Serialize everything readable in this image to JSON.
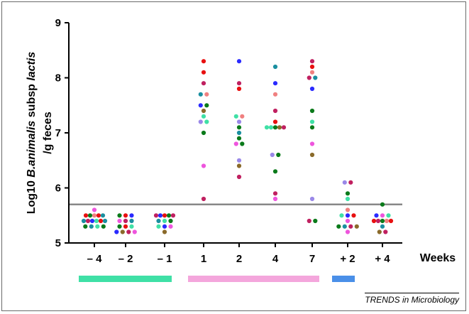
{
  "chart_data": {
    "type": "scatter",
    "ylabel_line1": {
      "prefix": "Log10 ",
      "italic": "B.animalis",
      "middle": " subsp ",
      "italic2": "lactis"
    },
    "ylabel_line2": "/g feces",
    "xlabel": "Weeks",
    "ylim": [
      5,
      9
    ],
    "yticks": [
      "5",
      "6",
      "7",
      "8",
      "9"
    ],
    "threshold": 5.7,
    "categories": [
      "– 4",
      "– 2",
      "– 1",
      "1",
      "2",
      "4",
      "7",
      "+ 2",
      "+ 4"
    ],
    "group_bars": [
      {
        "from": 0,
        "to": 2,
        "color": "#3fe0a6"
      },
      {
        "from": 3,
        "to": 6,
        "color": "#f4a6dc"
      },
      {
        "from": 7,
        "to": 7,
        "color": "#4a8fe8"
      }
    ],
    "series": [
      {
        "category": 0,
        "points": [
          {
            "y": 5.6,
            "color": "#ee55dd"
          },
          {
            "y": 5.5,
            "color": "#e81010"
          },
          {
            "y": 5.5,
            "color": "#0a7a1a"
          },
          {
            "y": 5.5,
            "color": "#f08080"
          },
          {
            "y": 5.5,
            "color": "#e81010"
          },
          {
            "y": 5.5,
            "color": "#1a8fa0"
          },
          {
            "y": 5.4,
            "color": "#1a8fa0"
          },
          {
            "y": 5.4,
            "color": "#c02060"
          },
          {
            "y": 5.4,
            "color": "#2a2aff"
          },
          {
            "y": 5.4,
            "color": "#3fe0a6"
          },
          {
            "y": 5.4,
            "color": "#e81010"
          },
          {
            "y": 5.4,
            "color": "#1a8fa0"
          },
          {
            "y": 5.3,
            "color": "#0a7a1a"
          },
          {
            "y": 5.3,
            "color": "#1a8fa0"
          },
          {
            "y": 5.3,
            "color": "#3fe0a6"
          },
          {
            "y": 5.3,
            "color": "#0a7a1a"
          }
        ]
      },
      {
        "category": 1,
        "points": [
          {
            "y": 5.5,
            "color": "#0a7a1a"
          },
          {
            "y": 5.5,
            "color": "#e81010"
          },
          {
            "y": 5.5,
            "color": "#2a2aff"
          },
          {
            "y": 5.4,
            "color": "#ee55dd"
          },
          {
            "y": 5.4,
            "color": "#c02060"
          },
          {
            "y": 5.4,
            "color": "#1a8fa0"
          },
          {
            "y": 5.3,
            "color": "#0a7a1a"
          },
          {
            "y": 5.3,
            "color": "#e81010"
          },
          {
            "y": 5.3,
            "color": "#3fe0a6"
          },
          {
            "y": 5.2,
            "color": "#2a2aff"
          },
          {
            "y": 5.2,
            "color": "#8a6a2a"
          },
          {
            "y": 5.2,
            "color": "#c02060"
          },
          {
            "y": 5.2,
            "color": "#ee55dd"
          }
        ]
      },
      {
        "category": 2,
        "points": [
          {
            "y": 5.5,
            "color": "#c02060"
          },
          {
            "y": 5.5,
            "color": "#2a2aff"
          },
          {
            "y": 5.5,
            "color": "#e81010"
          },
          {
            "y": 5.5,
            "color": "#0a7a1a"
          },
          {
            "y": 5.5,
            "color": "#c02060"
          },
          {
            "y": 5.4,
            "color": "#1a8fa0"
          },
          {
            "y": 5.4,
            "color": "#3fe0a6"
          },
          {
            "y": 5.4,
            "color": "#0a7a1a"
          },
          {
            "y": 5.3,
            "color": "#3fe0a6"
          },
          {
            "y": 5.3,
            "color": "#2a2aff"
          },
          {
            "y": 5.3,
            "color": "#ee55dd"
          },
          {
            "y": 5.2,
            "color": "#8a6a2a"
          }
        ]
      },
      {
        "category": 3,
        "points": [
          {
            "y": 8.3,
            "color": "#e81010"
          },
          {
            "y": 8.1,
            "color": "#e81010"
          },
          {
            "y": 7.9,
            "color": "#c02060"
          },
          {
            "y": 7.7,
            "color": "#1a8fa0"
          },
          {
            "y": 7.7,
            "color": "#f08080"
          },
          {
            "y": 7.5,
            "color": "#2a2aff"
          },
          {
            "y": 7.5,
            "color": "#0a7a1a"
          },
          {
            "y": 7.4,
            "color": "#8a6a2a"
          },
          {
            "y": 7.3,
            "color": "#3fe0a6"
          },
          {
            "y": 7.2,
            "color": "#9a88e8"
          },
          {
            "y": 7.2,
            "color": "#3fe0a6"
          },
          {
            "y": 7.0,
            "color": "#0a7a1a"
          },
          {
            "y": 6.4,
            "color": "#ee55dd"
          },
          {
            "y": 5.8,
            "color": "#c02060"
          }
        ]
      },
      {
        "category": 4,
        "points": [
          {
            "y": 8.3,
            "color": "#2a2aff"
          },
          {
            "y": 7.9,
            "color": "#c02060"
          },
          {
            "y": 7.8,
            "color": "#e81010"
          },
          {
            "y": 7.3,
            "color": "#3fe0a6"
          },
          {
            "y": 7.3,
            "color": "#f08080"
          },
          {
            "y": 7.2,
            "color": "#9a88e8"
          },
          {
            "y": 7.1,
            "color": "#0a7a1a"
          },
          {
            "y": 7.0,
            "color": "#1a8fa0"
          },
          {
            "y": 6.9,
            "color": "#0a7a1a"
          },
          {
            "y": 6.8,
            "color": "#ee55dd"
          },
          {
            "y": 6.8,
            "color": "#0a7a1a"
          },
          {
            "y": 6.5,
            "color": "#9a88e8"
          },
          {
            "y": 6.4,
            "color": "#8a6a2a"
          },
          {
            "y": 6.2,
            "color": "#c02060"
          }
        ]
      },
      {
        "category": 5,
        "points": [
          {
            "y": 8.2,
            "color": "#1a8fa0"
          },
          {
            "y": 7.9,
            "color": "#2a2aff"
          },
          {
            "y": 7.7,
            "color": "#f08080"
          },
          {
            "y": 7.4,
            "color": "#c02060"
          },
          {
            "y": 7.2,
            "color": "#e81010"
          },
          {
            "y": 7.1,
            "color": "#3fe0a6"
          },
          {
            "y": 7.1,
            "color": "#3fe0a6"
          },
          {
            "y": 7.1,
            "color": "#0a7a1a"
          },
          {
            "y": 7.1,
            "color": "#8a6a2a"
          },
          {
            "y": 7.1,
            "color": "#c02060"
          },
          {
            "y": 6.6,
            "color": "#9a88e8"
          },
          {
            "y": 6.6,
            "color": "#0a7a1a"
          },
          {
            "y": 6.3,
            "color": "#0a7a1a"
          },
          {
            "y": 5.9,
            "color": "#c02060"
          },
          {
            "y": 5.8,
            "color": "#ee55dd"
          }
        ]
      },
      {
        "category": 6,
        "points": [
          {
            "y": 8.3,
            "color": "#c02060"
          },
          {
            "y": 8.2,
            "color": "#e81010"
          },
          {
            "y": 8.1,
            "color": "#f08080"
          },
          {
            "y": 8.0,
            "color": "#c02060"
          },
          {
            "y": 8.0,
            "color": "#1a8fa0"
          },
          {
            "y": 7.8,
            "color": "#2a2aff"
          },
          {
            "y": 7.4,
            "color": "#0a7a1a"
          },
          {
            "y": 7.2,
            "color": "#3fe0a6"
          },
          {
            "y": 7.1,
            "color": "#0a7a1a"
          },
          {
            "y": 6.8,
            "color": "#ee55dd"
          },
          {
            "y": 6.6,
            "color": "#8a6a2a"
          },
          {
            "y": 5.8,
            "color": "#9a88e8"
          },
          {
            "y": 5.4,
            "color": "#c02060"
          },
          {
            "y": 5.4,
            "color": "#0a7a1a"
          }
        ]
      },
      {
        "category": 7,
        "points": [
          {
            "y": 6.1,
            "color": "#9a88e8"
          },
          {
            "y": 6.1,
            "color": "#c02060"
          },
          {
            "y": 5.9,
            "color": "#0a7a1a"
          },
          {
            "y": 5.8,
            "color": "#3fe0a6"
          },
          {
            "y": 5.6,
            "color": "#f08080"
          },
          {
            "y": 5.5,
            "color": "#3fe0a6"
          },
          {
            "y": 5.5,
            "color": "#2a2aff"
          },
          {
            "y": 5.5,
            "color": "#e81010"
          },
          {
            "y": 5.4,
            "color": "#ee55dd"
          },
          {
            "y": 5.3,
            "color": "#0a7a1a"
          },
          {
            "y": 5.3,
            "color": "#1a8fa0"
          },
          {
            "y": 5.3,
            "color": "#c02060"
          },
          {
            "y": 5.3,
            "color": "#8a6a2a"
          },
          {
            "y": 5.2,
            "color": "#ee55dd"
          }
        ]
      },
      {
        "category": 8,
        "points": [
          {
            "y": 5.7,
            "color": "#0a7a1a"
          },
          {
            "y": 5.5,
            "color": "#2a2aff"
          },
          {
            "y": 5.5,
            "color": "#ee55dd"
          },
          {
            "y": 5.5,
            "color": "#3fe0a6"
          },
          {
            "y": 5.4,
            "color": "#e81010"
          },
          {
            "y": 5.4,
            "color": "#c02060"
          },
          {
            "y": 5.4,
            "color": "#0a7a1a"
          },
          {
            "y": 5.4,
            "color": "#f08080"
          },
          {
            "y": 5.4,
            "color": "#e81010"
          },
          {
            "y": 5.3,
            "color": "#1a8fa0"
          },
          {
            "y": 5.2,
            "color": "#8a6a2a"
          },
          {
            "y": 5.2,
            "color": "#c02060"
          }
        ]
      }
    ]
  },
  "source_label": "TRENDS in Microbiology"
}
